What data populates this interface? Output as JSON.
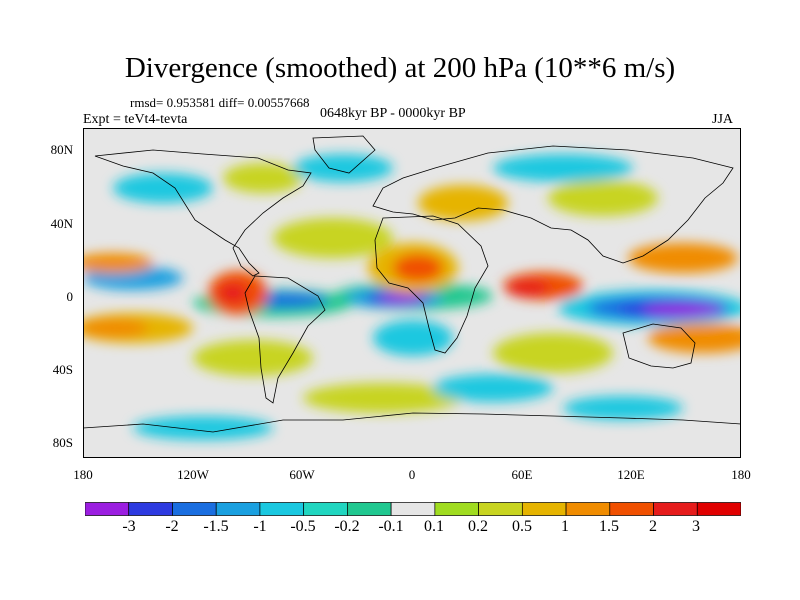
{
  "title": "Divergence (smoothed) at 200 hPa (10**6 m/s)",
  "stats": "rmsd= 0.953581 diff= 0.00557668",
  "experiment": "Expt = teVt4-tevta",
  "period": "0648kyr BP - 0000kyr BP",
  "season": "JJA",
  "map": {
    "lat_ticks": [
      "80N",
      "40N",
      "0",
      "40S",
      "80S"
    ],
    "lon_ticks": [
      "180",
      "120W",
      "60W",
      "0",
      "60E",
      "120E",
      "180"
    ],
    "background_color": "#e6e6e6"
  },
  "legend": {
    "labels": [
      "-3",
      "-2",
      "-1.5",
      "-1",
      "-0.5",
      "-0.2",
      "-0.1",
      "0.1",
      "0.2",
      "0.5",
      "1",
      "1.5",
      "2",
      "3"
    ],
    "colors": [
      "#9b1ee0",
      "#2d3ae0",
      "#1a6ee0",
      "#1aa0e0",
      "#1ac8e0",
      "#20d6c0",
      "#20c890",
      "#e6e6e6",
      "#a0dc20",
      "#c8d420",
      "#e6b400",
      "#f08c00",
      "#f05000",
      "#e61c1c",
      "#e00000"
    ]
  }
}
